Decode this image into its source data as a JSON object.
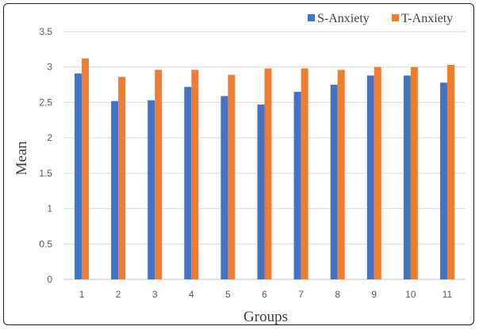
{
  "chart_data": {
    "type": "bar",
    "title": "",
    "xlabel": "Groups",
    "ylabel": "Mean",
    "categories": [
      "1",
      "2",
      "3",
      "4",
      "5",
      "6",
      "7",
      "8",
      "9",
      "10",
      "11"
    ],
    "series": [
      {
        "name": "S-Anxiety",
        "color": "#4472C4",
        "values": [
          2.91,
          2.52,
          2.53,
          2.72,
          2.59,
          2.47,
          2.65,
          2.75,
          2.88,
          2.88,
          2.78
        ]
      },
      {
        "name": "T-Anxiety",
        "color": "#ED7D31",
        "values": [
          3.12,
          2.86,
          2.96,
          2.96,
          2.89,
          2.98,
          2.98,
          2.96,
          3.0,
          3.0,
          3.03
        ]
      }
    ],
    "ylim": [
      0,
      3.5
    ],
    "yticks": [
      "0",
      "0.5",
      "1",
      "1.5",
      "2",
      "2.5",
      "3",
      "3.5"
    ],
    "grid": true,
    "legend_position": "top-right"
  }
}
